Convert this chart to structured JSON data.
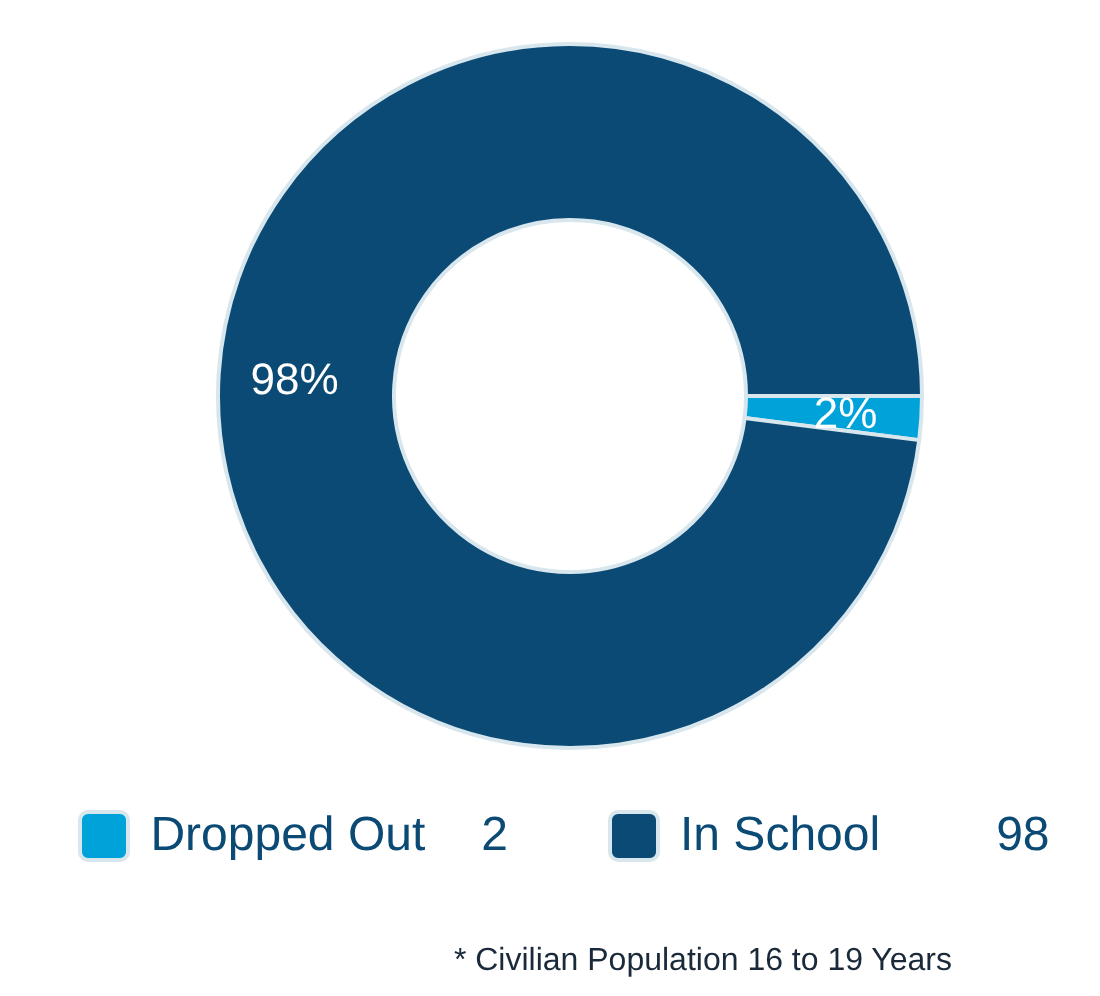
{
  "chart_data": {
    "type": "donut",
    "categories": [
      "Dropped Out",
      "In School"
    ],
    "values": [
      2,
      98
    ],
    "colors": [
      "#00a3d9",
      "#0b4a74"
    ],
    "value_labels": [
      "2%",
      "98%"
    ],
    "legend": "bottom",
    "annotations": [
      {
        "text": "2",
        "x": "Dropped Out"
      },
      {
        "text": "98",
        "x": "In School"
      },
      "* Civilian Population 16 to 19 Years"
    ]
  }
}
